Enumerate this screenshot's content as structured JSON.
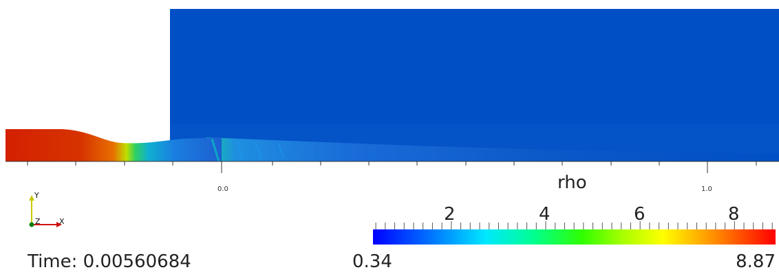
{
  "title": "",
  "time": {
    "label": "Time: 0.00560684"
  },
  "variable": "rho",
  "axis_ticks": [
    "0.0",
    "1.0"
  ],
  "colorbar": {
    "title": "rho",
    "min_label": "0.34",
    "max_label": "8.87",
    "min": 0.34,
    "max": 8.87,
    "major_ticks": [
      "2",
      "4",
      "6",
      "8"
    ],
    "colors": [
      "#0000ff",
      "#0080ff",
      "#00e0ff",
      "#00ff90",
      "#40ff00",
      "#c0ff00",
      "#ffff00",
      "#ff9000",
      "#ff3000",
      "#ff0000"
    ]
  },
  "orientation_triad": {
    "x": "X",
    "y": "Y",
    "z": "Z"
  },
  "colors": {
    "background": "#ffffff",
    "field_low": "#004fc4",
    "field_high": "#d42000"
  }
}
